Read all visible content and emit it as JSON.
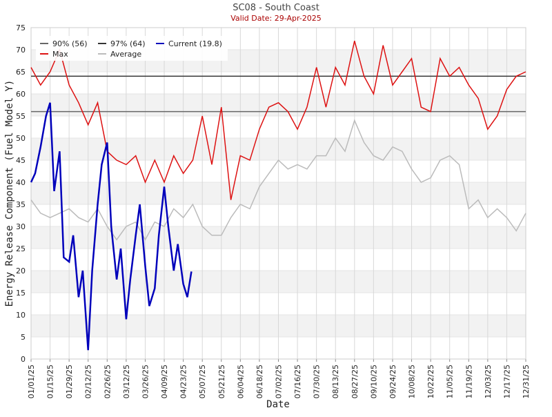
{
  "chart_data": {
    "type": "line",
    "title": "SC08 - South Coast",
    "subtitle": "Valid Date: 29-Apr-2025",
    "xlabel": "Date",
    "ylabel": "Energy Release Component (Fuel Model Y)",
    "xlim": [
      "01/01/25",
      "12/31/25"
    ],
    "xticks": [
      "01/01/25",
      "01/15/25",
      "01/29/25",
      "02/12/25",
      "02/26/25",
      "03/12/25",
      "03/26/25",
      "04/09/25",
      "04/23/25",
      "05/07/25",
      "05/21/25",
      "06/04/25",
      "06/18/25",
      "07/02/25",
      "07/16/25",
      "07/30/25",
      "08/13/25",
      "08/27/25",
      "09/10/25",
      "09/24/25",
      "10/08/25",
      "10/22/25",
      "11/05/25",
      "11/19/25",
      "12/03/25",
      "12/17/25",
      "12/31/25"
    ],
    "ylim": [
      0,
      75
    ],
    "yticks": [
      0,
      5,
      10,
      15,
      20,
      25,
      30,
      35,
      40,
      45,
      50,
      55,
      60,
      65,
      70,
      75
    ],
    "grid": true,
    "reference_lines": [
      {
        "name": "90% (56)",
        "value": 56,
        "color": "#666666"
      },
      {
        "name": "97% (64)",
        "value": 64,
        "color": "#333333"
      }
    ],
    "series": [
      {
        "name": "Current (19.8)",
        "color": "#0000bb",
        "x": [
          "01/01/25",
          "01/04/25",
          "01/08/25",
          "01/12/25",
          "01/15/25",
          "01/18/25",
          "01/22/25",
          "01/25/25",
          "01/29/25",
          "02/01/25",
          "02/05/25",
          "02/08/25",
          "02/12/25",
          "02/15/25",
          "02/19/25",
          "02/22/25",
          "02/26/25",
          "03/01/25",
          "03/05/25",
          "03/08/25",
          "03/12/25",
          "03/15/25",
          "03/19/25",
          "03/22/25",
          "03/26/25",
          "03/29/25",
          "04/02/25",
          "04/05/25",
          "04/09/25",
          "04/12/25",
          "04/16/25",
          "04/19/25",
          "04/23/25",
          "04/26/25",
          "04/29/25"
        ],
        "values": [
          40,
          42,
          48,
          55,
          58,
          38,
          47,
          23,
          22,
          28,
          14,
          20,
          2,
          20,
          35,
          44,
          49,
          30,
          18,
          25,
          9,
          18,
          28,
          35,
          21,
          12,
          16,
          28,
          39,
          30,
          20,
          26,
          17,
          14,
          19.8
        ]
      },
      {
        "name": "Max",
        "color": "#dd1111",
        "x": [
          "01/01/25",
          "01/08/25",
          "01/15/25",
          "01/22/25",
          "01/29/25",
          "02/05/25",
          "02/12/25",
          "02/19/25",
          "02/26/25",
          "03/05/25",
          "03/12/25",
          "03/19/25",
          "03/26/25",
          "04/02/25",
          "04/09/25",
          "04/16/25",
          "04/23/25",
          "04/30/25",
          "05/07/25",
          "05/14/25",
          "05/21/25",
          "05/28/25",
          "06/04/25",
          "06/11/25",
          "06/18/25",
          "06/25/25",
          "07/02/25",
          "07/09/25",
          "07/16/25",
          "07/23/25",
          "07/30/25",
          "08/06/25",
          "08/13/25",
          "08/20/25",
          "08/27/25",
          "09/03/25",
          "09/10/25",
          "09/17/25",
          "09/24/25",
          "10/01/25",
          "10/08/25",
          "10/15/25",
          "10/22/25",
          "10/29/25",
          "11/05/25",
          "11/12/25",
          "11/19/25",
          "11/26/25",
          "12/03/25",
          "12/10/25",
          "12/17/25",
          "12/24/25",
          "12/31/25"
        ],
        "values": [
          66,
          62,
          65,
          70,
          62,
          58,
          53,
          58,
          47,
          45,
          44,
          46,
          40,
          45,
          40,
          46,
          42,
          45,
          55,
          44,
          57,
          36,
          46,
          45,
          52,
          57,
          58,
          56,
          52,
          57,
          66,
          57,
          66,
          62,
          72,
          64,
          60,
          71,
          62,
          65,
          68,
          57,
          56,
          68,
          64,
          66,
          62,
          59,
          52,
          55,
          61,
          64,
          65
        ]
      },
      {
        "name": "Average",
        "color": "#bbbbbb",
        "x": [
          "01/01/25",
          "01/08/25",
          "01/15/25",
          "01/22/25",
          "01/29/25",
          "02/05/25",
          "02/12/25",
          "02/19/25",
          "02/26/25",
          "03/05/25",
          "03/12/25",
          "03/19/25",
          "03/26/25",
          "04/02/25",
          "04/09/25",
          "04/16/25",
          "04/23/25",
          "04/30/25",
          "05/07/25",
          "05/14/25",
          "05/21/25",
          "05/28/25",
          "06/04/25",
          "06/11/25",
          "06/18/25",
          "06/25/25",
          "07/02/25",
          "07/09/25",
          "07/16/25",
          "07/23/25",
          "07/30/25",
          "08/06/25",
          "08/13/25",
          "08/20/25",
          "08/27/25",
          "09/03/25",
          "09/10/25",
          "09/17/25",
          "09/24/25",
          "10/01/25",
          "10/08/25",
          "10/15/25",
          "10/22/25",
          "10/29/25",
          "11/05/25",
          "11/12/25",
          "11/19/25",
          "11/26/25",
          "12/03/25",
          "12/10/25",
          "12/17/25",
          "12/24/25",
          "12/31/25"
        ],
        "values": [
          36,
          33,
          32,
          33,
          34,
          32,
          31,
          34,
          30,
          27,
          30,
          31,
          27,
          31,
          30,
          34,
          32,
          35,
          30,
          28,
          28,
          32,
          35,
          34,
          39,
          42,
          45,
          43,
          44,
          43,
          46,
          46,
          50,
          47,
          54,
          49,
          46,
          45,
          48,
          47,
          43,
          40,
          41,
          45,
          46,
          44,
          34,
          36,
          32,
          34,
          32,
          29,
          33
        ]
      }
    ]
  }
}
